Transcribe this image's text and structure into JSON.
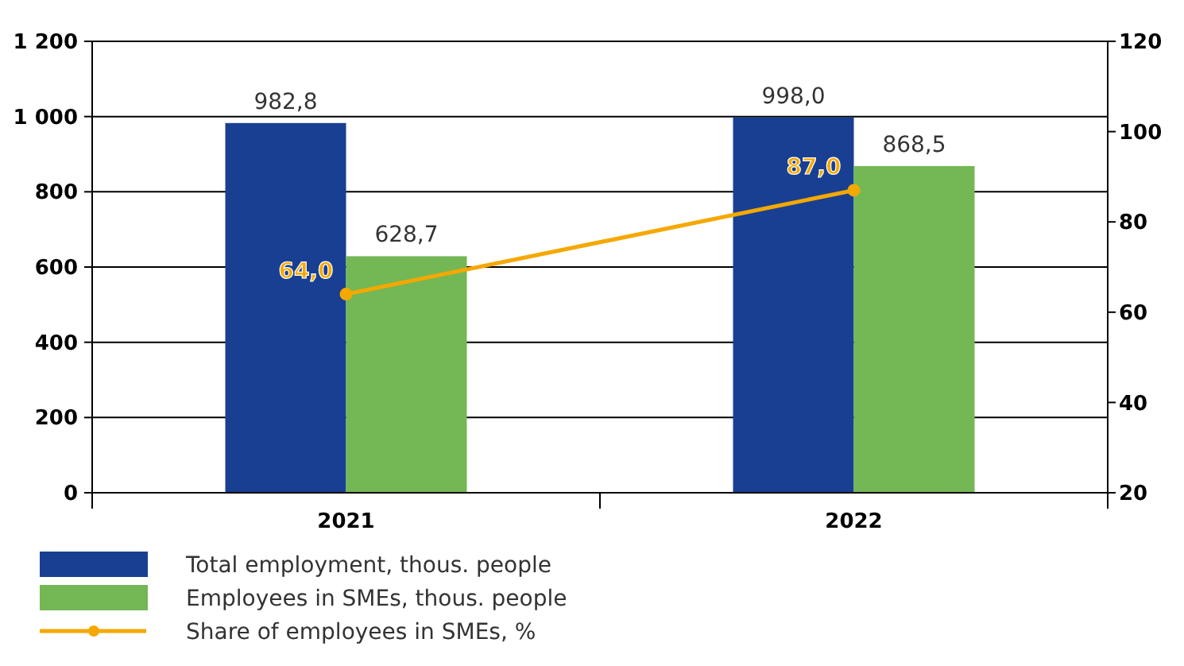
{
  "chart_data": {
    "type": "bar",
    "categories": [
      "2021",
      "2022"
    ],
    "series": [
      {
        "name": "Total employment, thous. people",
        "color": "#183f92",
        "values": [
          982.8,
          998.0
        ],
        "value_labels": [
          "982,8",
          "998,0"
        ]
      },
      {
        "name": "Employees in SMEs, thous. people",
        "color": "#74b755",
        "values": [
          628.7,
          868.5
        ],
        "value_labels": [
          "628,7",
          "868,5"
        ]
      },
      {
        "name": "Share of employees in SMEs, %",
        "type": "line",
        "axis": "y2",
        "color": "#f5a800",
        "marker": "circle",
        "values": [
          64.0,
          87.0
        ],
        "value_labels": [
          "64,0",
          "87,0"
        ]
      }
    ],
    "ylim": [
      0,
      1200
    ],
    "yticks": [
      0,
      200,
      400,
      600,
      800,
      {
        "value": 1000,
        "label": "1 000"
      },
      {
        "value": 1200,
        "label": "1 200"
      }
    ],
    "y2lim": [
      20,
      120
    ],
    "y2ticks": [
      20,
      40,
      60,
      80,
      100,
      120
    ],
    "grid": "y",
    "legend": "bottom left"
  }
}
